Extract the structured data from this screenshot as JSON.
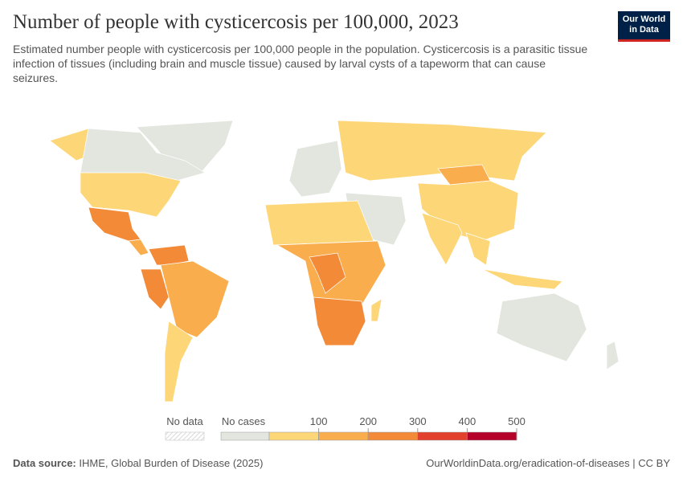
{
  "header": {
    "title": "Number of people with cysticercosis per 100,000, 2023",
    "subtitle": "Estimated number people with cysticercosis per 100,000 people in the population. Cysticercosis is a parasitic tissue infection of tissues (including brain and muscle tissue) caused by larval cysts of a tapeworm that can cause seizures."
  },
  "logo": {
    "line1": "Our World",
    "line2": "in Data"
  },
  "legend": {
    "no_data": "No data",
    "no_cases": "No cases",
    "ticks": [
      100,
      200,
      300,
      400,
      500
    ],
    "colors": [
      "#fdd678",
      "#f9ad4c",
      "#f28a38",
      "#e2402c",
      "#b5002a"
    ]
  },
  "footer": {
    "source_label": "Data source:",
    "source": "IHME, Global Burden of Disease (2025)",
    "url": "OurWorldinData.org/eradication-of-diseases | CC BY"
  }
}
